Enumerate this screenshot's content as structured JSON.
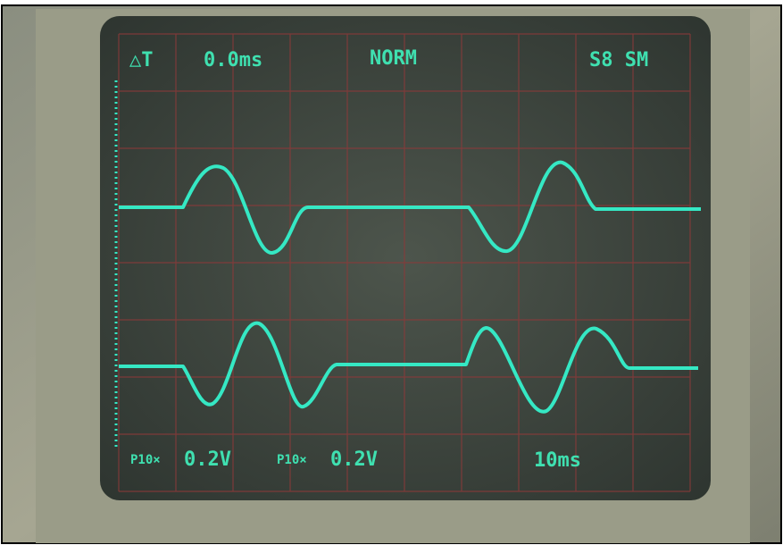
{
  "readout": {
    "delta_t_label": "△T",
    "delta_t": "0.0ms",
    "mode": "NORM",
    "status": "S8 SM"
  },
  "channels": [
    {
      "probe": "P10×",
      "volts": "0.2V"
    },
    {
      "probe": "P10×",
      "volts": "0.2V"
    }
  ],
  "timebase": "10ms"
}
